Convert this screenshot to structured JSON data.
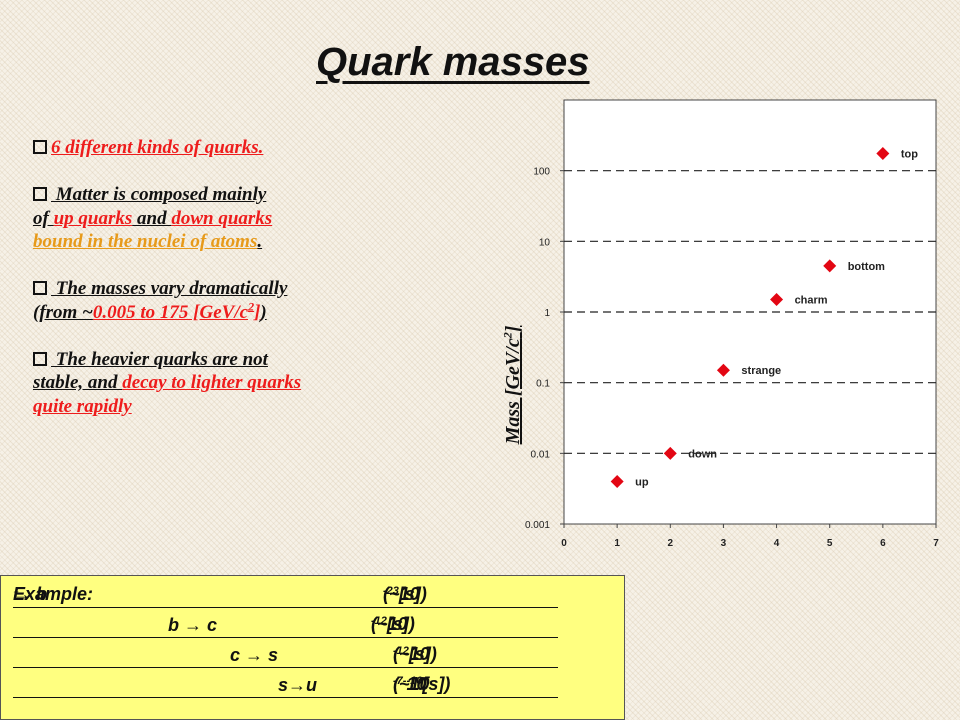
{
  "title": "Quark masses",
  "bullets": {
    "b1": "6 different kinds of quarks.",
    "b2_a": " Matter is composed mainly",
    "b2_b": "of ",
    "b2_up": "up quarks",
    "b2_and": " and ",
    "b2_down": "down quarks",
    "b2_bound": "bound in the nuclei of  atoms",
    "b2_end": ".",
    "b3_a": " The masses vary dramatically",
    "b3_b": "(from ~",
    "b3_range": "0.005 to 175 [GeV/c",
    "b3_sup": "2",
    "b3_close": "]",
    "b3_end": ")",
    "b4_a": " The heavier quarks are not",
    "b4_b": "stable, and ",
    "b4_decay": "decay to lighter quarks",
    "b4_c": "quite rapidly"
  },
  "ylabel_text": "Mass [GeV/c",
  "ylabel_sup": "2",
  "ylabel_end": "]",
  "chart_data": {
    "type": "scatter",
    "x": [
      1,
      2,
      3,
      4,
      5,
      6
    ],
    "y": [
      0.004,
      0.01,
      0.15,
      1.5,
      4.5,
      175
    ],
    "point_labels": [
      "up",
      "down",
      "strange",
      "charm",
      "bottom",
      "top"
    ],
    "xlim": [
      0,
      7
    ],
    "ylim": [
      0.001,
      1000
    ],
    "yscale": "log",
    "x_ticks": [
      "0",
      "1",
      "2",
      "3",
      "4",
      "5",
      "6",
      "7"
    ],
    "y_ticks": [
      "0.001",
      "0.01",
      "0.1",
      "1",
      "10",
      "100"
    ],
    "ylabel": "Mass [GeV/c2]",
    "grid": "horizontal dashed",
    "marker_color": "#e30613"
  },
  "example": {
    "line1_label": "Example: ",
    "line1_t": "t",
    "line1_arrow": " → b",
    "line1_time": "(~10",
    "line1_exp": "-23",
    "line1_unit": " [s])",
    "line2_decay": "b → c",
    "line2_time": "(~10",
    "line2_exp": "-12",
    "line2_unit": " [s])",
    "line3_decay": "c → s",
    "line3_time": "(~10",
    "line3_exp": "-12",
    "line3_unit": " [s])",
    "line4_decay": "s→u",
    "line4_time": "(~10",
    "line4_exp": "-7-",
    "line4_mid": "10",
    "line4_exp2": "-10",
    "line4_unit": " [s])"
  }
}
